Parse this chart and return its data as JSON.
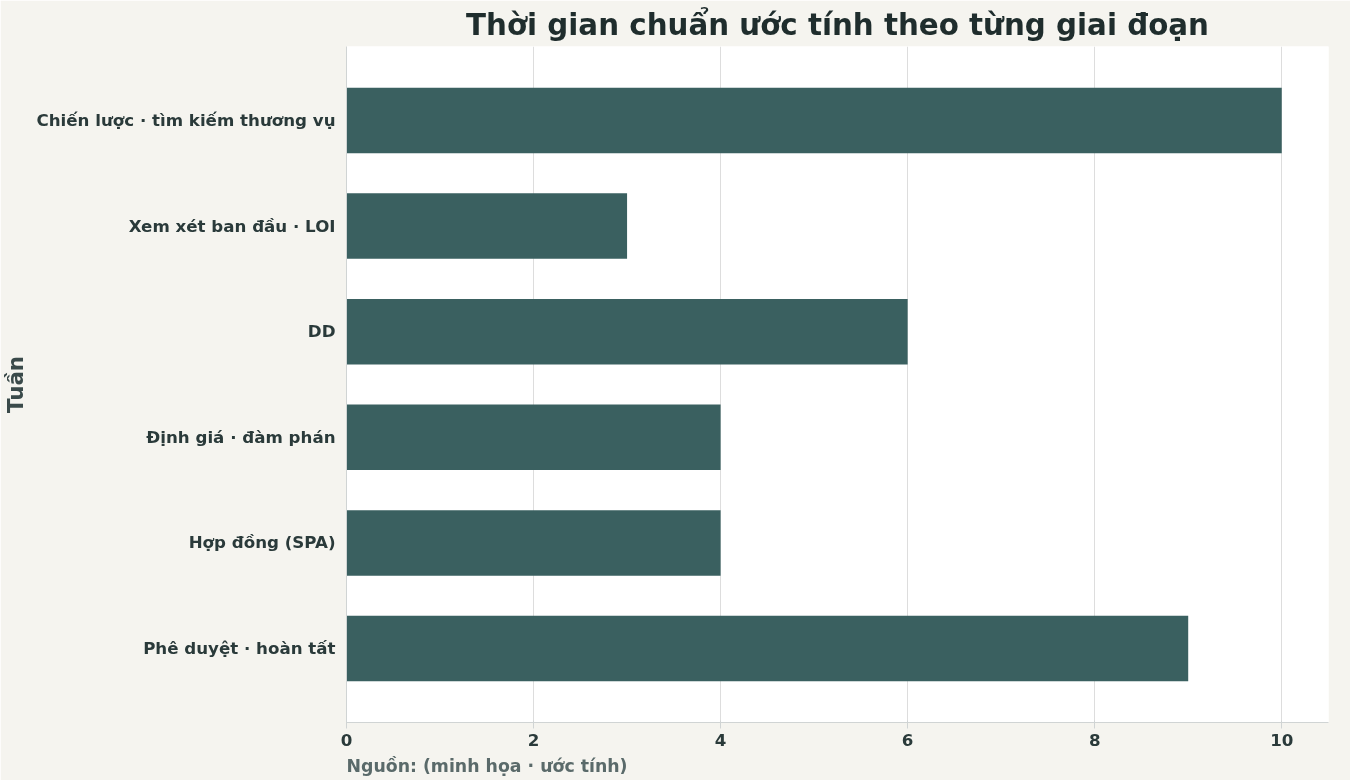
{
  "chart_data": {
    "type": "bar",
    "orientation": "horizontal",
    "title": "Thời gian chuẩn ước tính theo từng giai đoạn",
    "ylabel": "Tuần",
    "categories": [
      "Chiến lược · tìm kiếm thương vụ",
      "Xem xét ban đầu · LOI",
      "DD",
      "Định giá · đàm phán",
      "Hợp đồng (SPA)",
      "Phê duyệt · hoàn tất"
    ],
    "values": [
      10,
      3,
      6,
      4,
      4,
      9
    ],
    "color": "#3a6060",
    "xlim": [
      0,
      10.5
    ],
    "xticks": [
      0,
      2,
      4,
      6,
      8,
      10
    ],
    "grid": "x",
    "annotations": [
      "Nguồn: (minh họa · ước tính)"
    ]
  }
}
